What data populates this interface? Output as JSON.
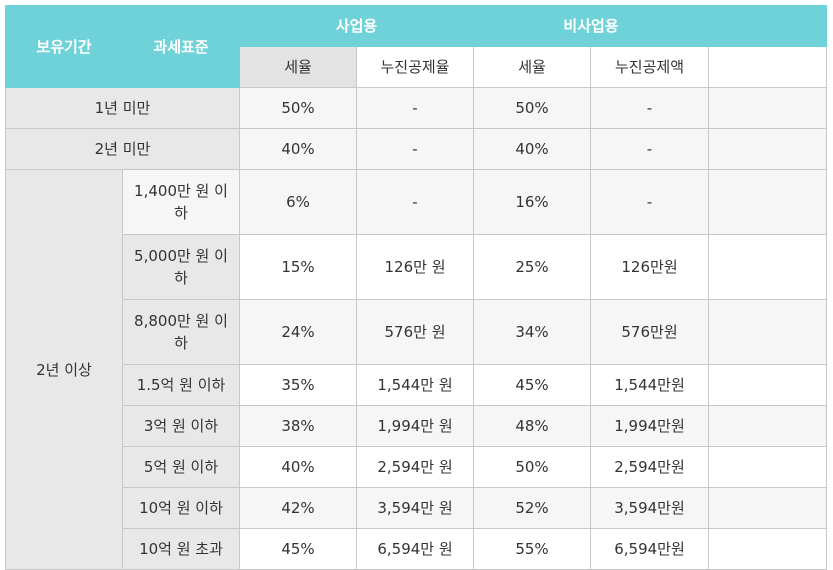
{
  "header": {
    "period": "보유기간",
    "tax_base": "과세표준",
    "business": "사업용",
    "non_business": "비사업용",
    "rate": "세율",
    "progressive_rate": "누진공제율",
    "rate2": "세율",
    "progressive_amount": "누진공제액"
  },
  "rows_simple": [
    {
      "period": "1년 미만",
      "b_rate": "50%",
      "b_ded": "-",
      "n_rate": "50%",
      "n_ded": "-"
    },
    {
      "period": "2년 미만",
      "b_rate": "40%",
      "b_ded": "-",
      "n_rate": "40%",
      "n_ded": "-"
    }
  ],
  "group_period": "2년 이상",
  "rows_group": [
    {
      "std": "1,400만 원 이하",
      "b_rate": "6%",
      "b_ded": "-",
      "n_rate": "16%",
      "n_ded": "-"
    },
    {
      "std": "5,000만 원 이하",
      "b_rate": "15%",
      "b_ded": "126만 원",
      "n_rate": "25%",
      "n_ded": "126만원"
    },
    {
      "std": "8,800만 원 이하",
      "b_rate": "24%",
      "b_ded": "576만 원",
      "n_rate": "34%",
      "n_ded": "576만원"
    },
    {
      "std": "1.5억 원 이하",
      "b_rate": "35%",
      "b_ded": "1,544만 원",
      "n_rate": "45%",
      "n_ded": "1,544만원"
    },
    {
      "std": "3억 원 이하",
      "b_rate": "38%",
      "b_ded": "1,994만 원",
      "n_rate": "48%",
      "n_ded": "1,994만원"
    },
    {
      "std": "5억 원 이하",
      "b_rate": "40%",
      "b_ded": "2,594만 원",
      "n_rate": "50%",
      "n_ded": "2,594만원"
    },
    {
      "std": "10억 원 이하",
      "b_rate": "42%",
      "b_ded": "3,594만 원",
      "n_rate": "52%",
      "n_ded": "3,594만원"
    },
    {
      "std": "10억 원 초과",
      "b_rate": "45%",
      "b_ded": "6,594만 원",
      "n_rate": "55%",
      "n_ded": "6,594만원"
    }
  ]
}
